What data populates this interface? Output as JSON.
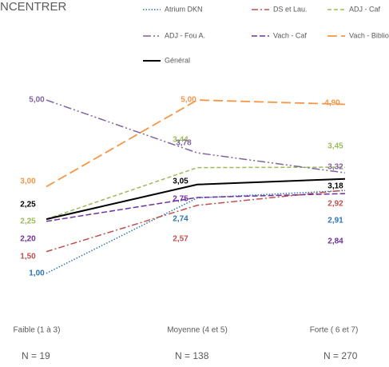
{
  "chart_data": {
    "type": "line",
    "title": "NCENTRER",
    "categories": [
      "Faible (1 à 3)",
      "Moyenne (4 et 5)",
      "Forte ( 6 et 7)"
    ],
    "ylim": [
      0,
      5.5
    ],
    "series": [
      {
        "name": "Atrium DKN",
        "color": "#2e75b6",
        "values": [
          1.0,
          2.74,
          2.91
        ],
        "value_labels": [
          "1,00",
          "2,74",
          "2,91"
        ]
      },
      {
        "name": "DS et Lau.",
        "color": "#c0504d",
        "values": [
          1.5,
          2.57,
          2.92
        ],
        "value_labels": [
          "1,50",
          "2,57",
          "2,92"
        ]
      },
      {
        "name": "ADJ - Caf",
        "color": "#9bbb59",
        "values": [
          2.25,
          3.44,
          3.45
        ],
        "value_labels": [
          "2,25",
          "3,44",
          "3,45"
        ]
      },
      {
        "name": "ADJ - Fou A.",
        "color": "#8064a2",
        "values": [
          5.0,
          3.78,
          3.32
        ],
        "value_labels": [
          "5,00",
          "3,78",
          "3,32"
        ]
      },
      {
        "name": "Vach - Caf",
        "color": "#7030a0",
        "values": [
          2.2,
          2.75,
          2.84
        ],
        "value_labels": [
          "2,20",
          "2,75",
          "2,84"
        ]
      },
      {
        "name": "Vach - Biblio",
        "color": "#f79646",
        "values": [
          3.0,
          5.0,
          4.9
        ],
        "value_labels": [
          "3,00",
          "5,00",
          "4,90"
        ]
      },
      {
        "name": "Général",
        "color": "#000000",
        "values": [
          2.25,
          3.05,
          3.18
        ],
        "value_labels": [
          "2,25",
          "3,05",
          "3,18"
        ]
      }
    ],
    "annotations": [
      "N = 19",
      "N = 138",
      "N = 270"
    ]
  }
}
